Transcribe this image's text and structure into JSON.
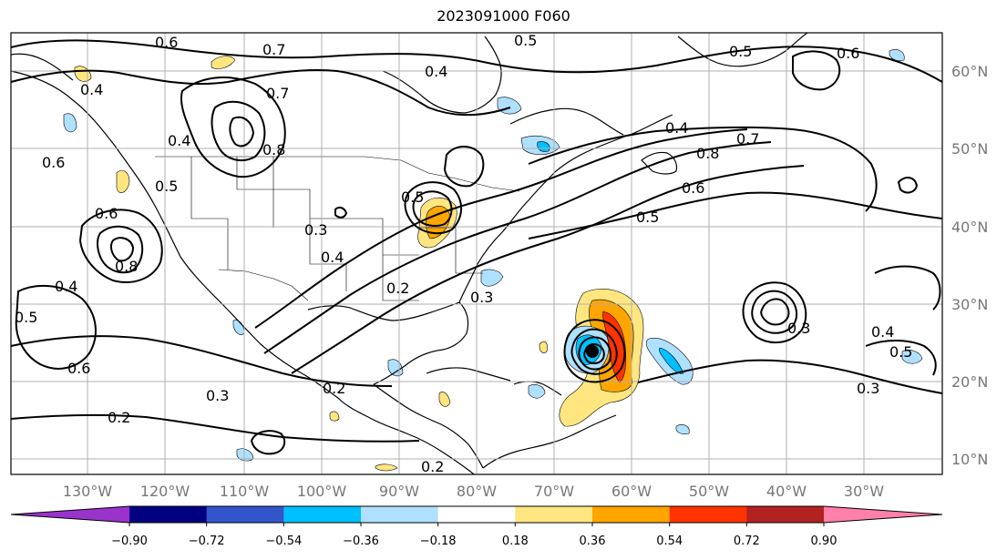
{
  "title": "2023091000 F060",
  "map": {
    "longitude_labels": [
      "130°W",
      "120°W",
      "110°W",
      "100°W",
      "90°W",
      "80°W",
      "70°W",
      "60°W",
      "50°W",
      "40°W",
      "30°W"
    ],
    "latitude_labels": [
      "60°N",
      "50°N",
      "40°N",
      "30°N",
      "20°N",
      "10°N"
    ],
    "contour_labels": [
      "0.6",
      "0.7",
      "0.4",
      "0.5",
      "0.8",
      "0.4",
      "0.7",
      "0.6",
      "0.5",
      "0.4",
      "0.8",
      "0.7",
      "0.5",
      "0.6",
      "0.4",
      "0.4",
      "0.8",
      "0.5",
      "0.6",
      "0.5",
      "0.6",
      "0.6",
      "0.4",
      "0.5",
      "0.3",
      "0.2",
      "0.3",
      "0.2",
      "0.2",
      "0.3",
      "0.4",
      "0.3",
      "0.5",
      "0.3",
      "0.2"
    ],
    "colors": {
      "land_line": "#000000",
      "grid": "#b0b0b0",
      "contour": "#000000"
    }
  },
  "colorbar": {
    "tick_labels": [
      "−0.90",
      "−0.72",
      "−0.54",
      "−0.36",
      "−0.18",
      "0.18",
      "0.36",
      "0.54",
      "0.72",
      "0.90"
    ],
    "colors": [
      "#9a33cc",
      "#000080",
      "#3355cc",
      "#00bfff",
      "#b0e0ff",
      "#ffffff",
      "#ffe680",
      "#ffa500",
      "#ff3300",
      "#b22222",
      "#ff80aa"
    ]
  }
}
